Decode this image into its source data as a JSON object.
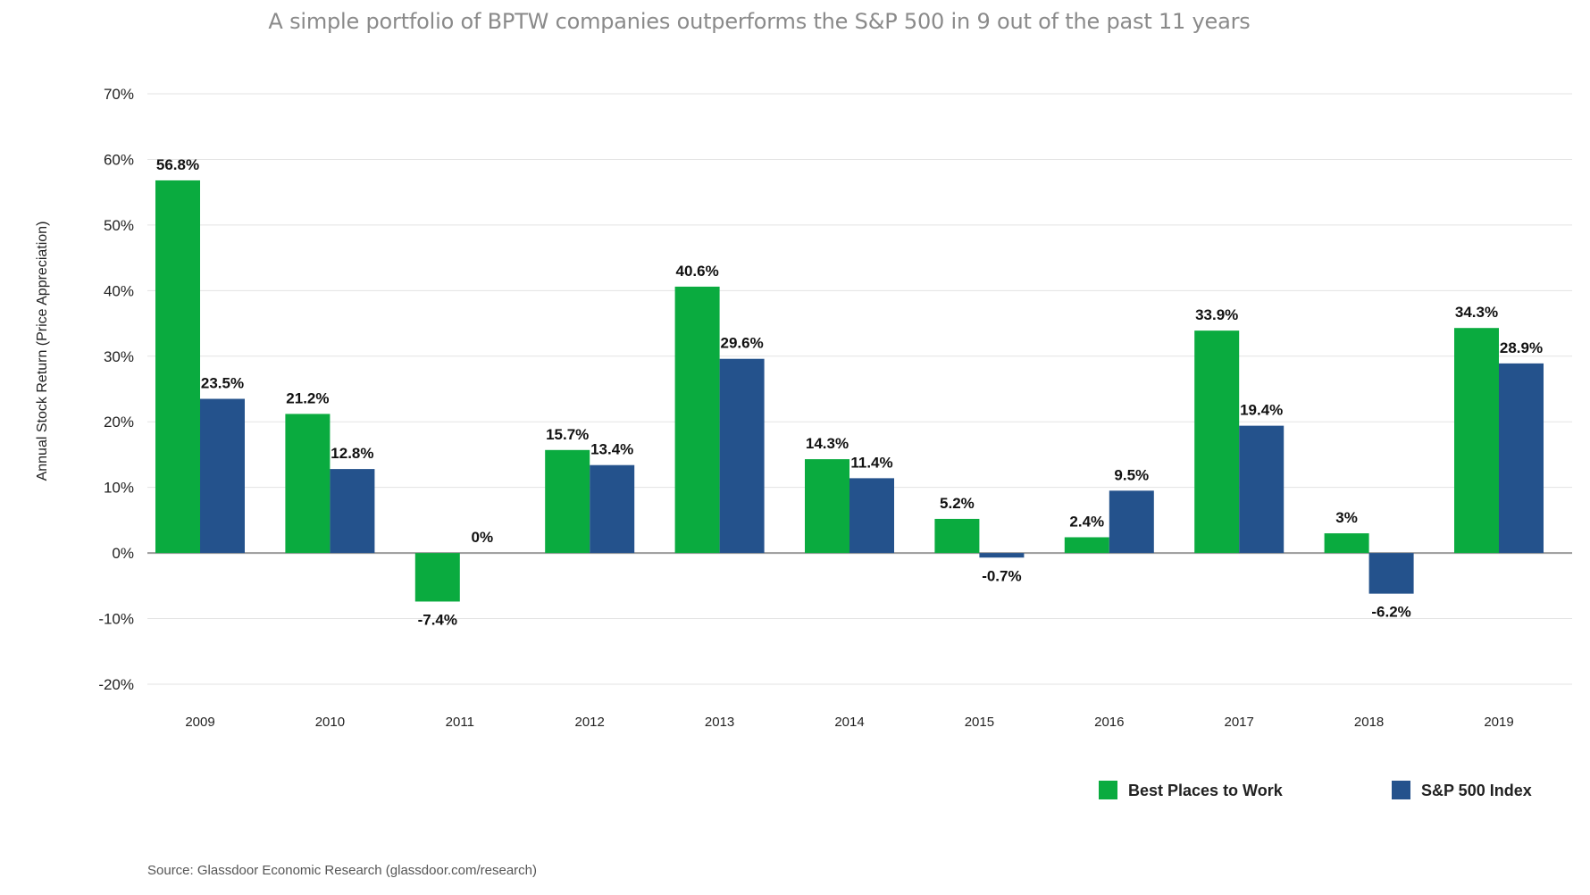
{
  "chart_data": {
    "type": "bar",
    "title": "A simple portfolio of BPTW companies outperforms the S&P 500 in 9 out of the past 11 years",
    "ylabel": "Annual Stock Return (Price Appreciation)",
    "xlabel": "",
    "ylim": [
      -20,
      70
    ],
    "yticks": [
      70,
      60,
      50,
      40,
      30,
      20,
      10,
      0,
      -10,
      -20
    ],
    "ytick_labels": [
      "70%",
      "60%",
      "50%",
      "40%",
      "30%",
      "20%",
      "10%",
      "0%",
      "-10%",
      "-20%"
    ],
    "grid": true,
    "legend_position": "bottom-right",
    "categories": [
      "2009",
      "2010",
      "2011",
      "2012",
      "2013",
      "2014",
      "2015",
      "2016",
      "2017",
      "2018",
      "2019"
    ],
    "series": [
      {
        "name": "Best Places to Work",
        "color": "#0aab3f",
        "values": [
          56.8,
          21.2,
          -7.4,
          15.7,
          40.6,
          14.3,
          5.2,
          2.4,
          33.9,
          3,
          34.3
        ],
        "labels": [
          "56.8%",
          "21.2%",
          "-7.4%",
          "15.7%",
          "40.6%",
          "14.3%",
          "5.2%",
          "2.4%",
          "33.9%",
          "3%",
          "34.3%"
        ]
      },
      {
        "name": "S&P 500 Index",
        "color": "#24528c",
        "values": [
          23.5,
          12.8,
          0,
          13.4,
          29.6,
          11.4,
          -0.7,
          9.5,
          19.4,
          -6.2,
          28.9
        ],
        "labels": [
          "23.5%",
          "12.8%",
          "0%",
          "13.4%",
          "29.6%",
          "11.4%",
          "-0.7%",
          "9.5%",
          "19.4%",
          "-6.2%",
          "28.9%"
        ]
      }
    ]
  },
  "source": "Source: Glassdoor Economic Research (glassdoor.com/research)"
}
